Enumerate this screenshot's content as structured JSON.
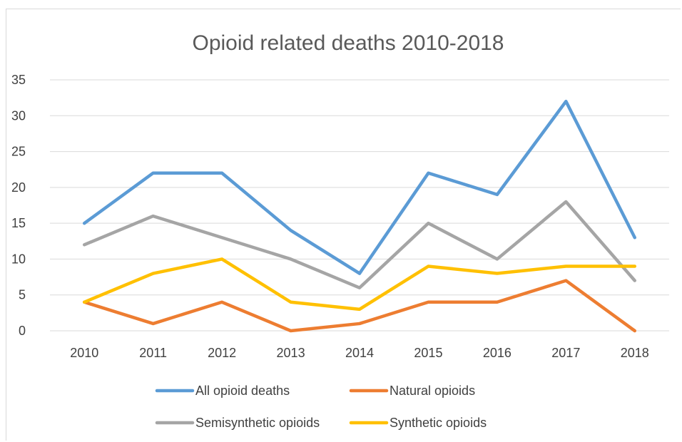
{
  "chart_data": {
    "type": "line",
    "title": "Opioid related deaths 2010-2018",
    "xlabel": "",
    "ylabel": "",
    "categories": [
      "2010",
      "2011",
      "2012",
      "2013",
      "2014",
      "2015",
      "2016",
      "2017",
      "2018"
    ],
    "ylim": [
      0,
      35
    ],
    "yticks": [
      "0",
      "5",
      "10",
      "15",
      "20",
      "25",
      "30",
      "35"
    ],
    "grid": true,
    "legend_position": "bottom",
    "series": [
      {
        "name": "All opioid deaths",
        "color": "#5b9bd5",
        "values": [
          15,
          22,
          22,
          14,
          8,
          22,
          19,
          32,
          13
        ]
      },
      {
        "name": "Natural opioids",
        "color": "#ed7d31",
        "values": [
          4,
          1,
          4,
          0,
          1,
          4,
          4,
          7,
          0
        ]
      },
      {
        "name": "Semisynthetic opioids",
        "color": "#a5a5a5",
        "values": [
          12,
          16,
          13,
          10,
          6,
          15,
          10,
          18,
          7
        ]
      },
      {
        "name": "Synthetic opioids",
        "color": "#ffc000",
        "values": [
          4,
          8,
          10,
          4,
          3,
          9,
          8,
          9,
          9
        ]
      }
    ]
  }
}
